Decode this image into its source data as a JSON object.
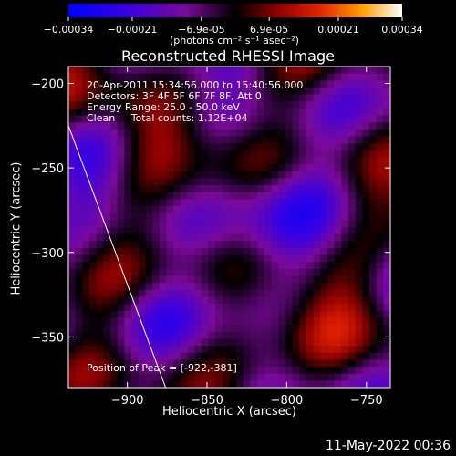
{
  "colorbar": {
    "ticks": [
      "-0.00034",
      "-0.00021",
      "-6.9e-05",
      "6.9e-05",
      "0.00021",
      "0.00034"
    ],
    "unit_label": "(photons cm⁻² s⁻¹ asec⁻²)"
  },
  "chart_data": {
    "type": "heatmap",
    "title": "Reconstructed RHESSI Image",
    "xlabel": "Heliocentric X (arcsec)",
    "ylabel": "Heliocentric Y (arcsec)",
    "xlim": [
      -937,
      -735
    ],
    "ylim": [
      -380,
      -190
    ],
    "x_ticks": [
      -900,
      -850,
      -800,
      -750
    ],
    "y_ticks": [
      -200,
      -250,
      -300,
      -350
    ],
    "x_tick_labels": [
      "−900",
      "−850",
      "−800",
      "−750"
    ],
    "y_tick_labels": [
      "−200",
      "−250",
      "−300",
      "−350"
    ],
    "value_range": [
      -0.00034,
      0.00034
    ],
    "limb_line": {
      "x": [
        -937,
        -876
      ],
      "y": [
        -225,
        -380
      ]
    },
    "annotations": [
      "20-Apr-2011 15:34:56.000 to 15:40:56.000",
      "Detectors: 3F 4F 5F 6F 7F 8F, Att 0",
      "Energy Range: 25.0 - 50.0 keV",
      "Clean     Total counts: 1.12E+04"
    ],
    "peak_label": "Position of Peak = [-922,-381]",
    "grid": false
  },
  "footer": {
    "timestamp": "11-May-2022 00:36"
  }
}
